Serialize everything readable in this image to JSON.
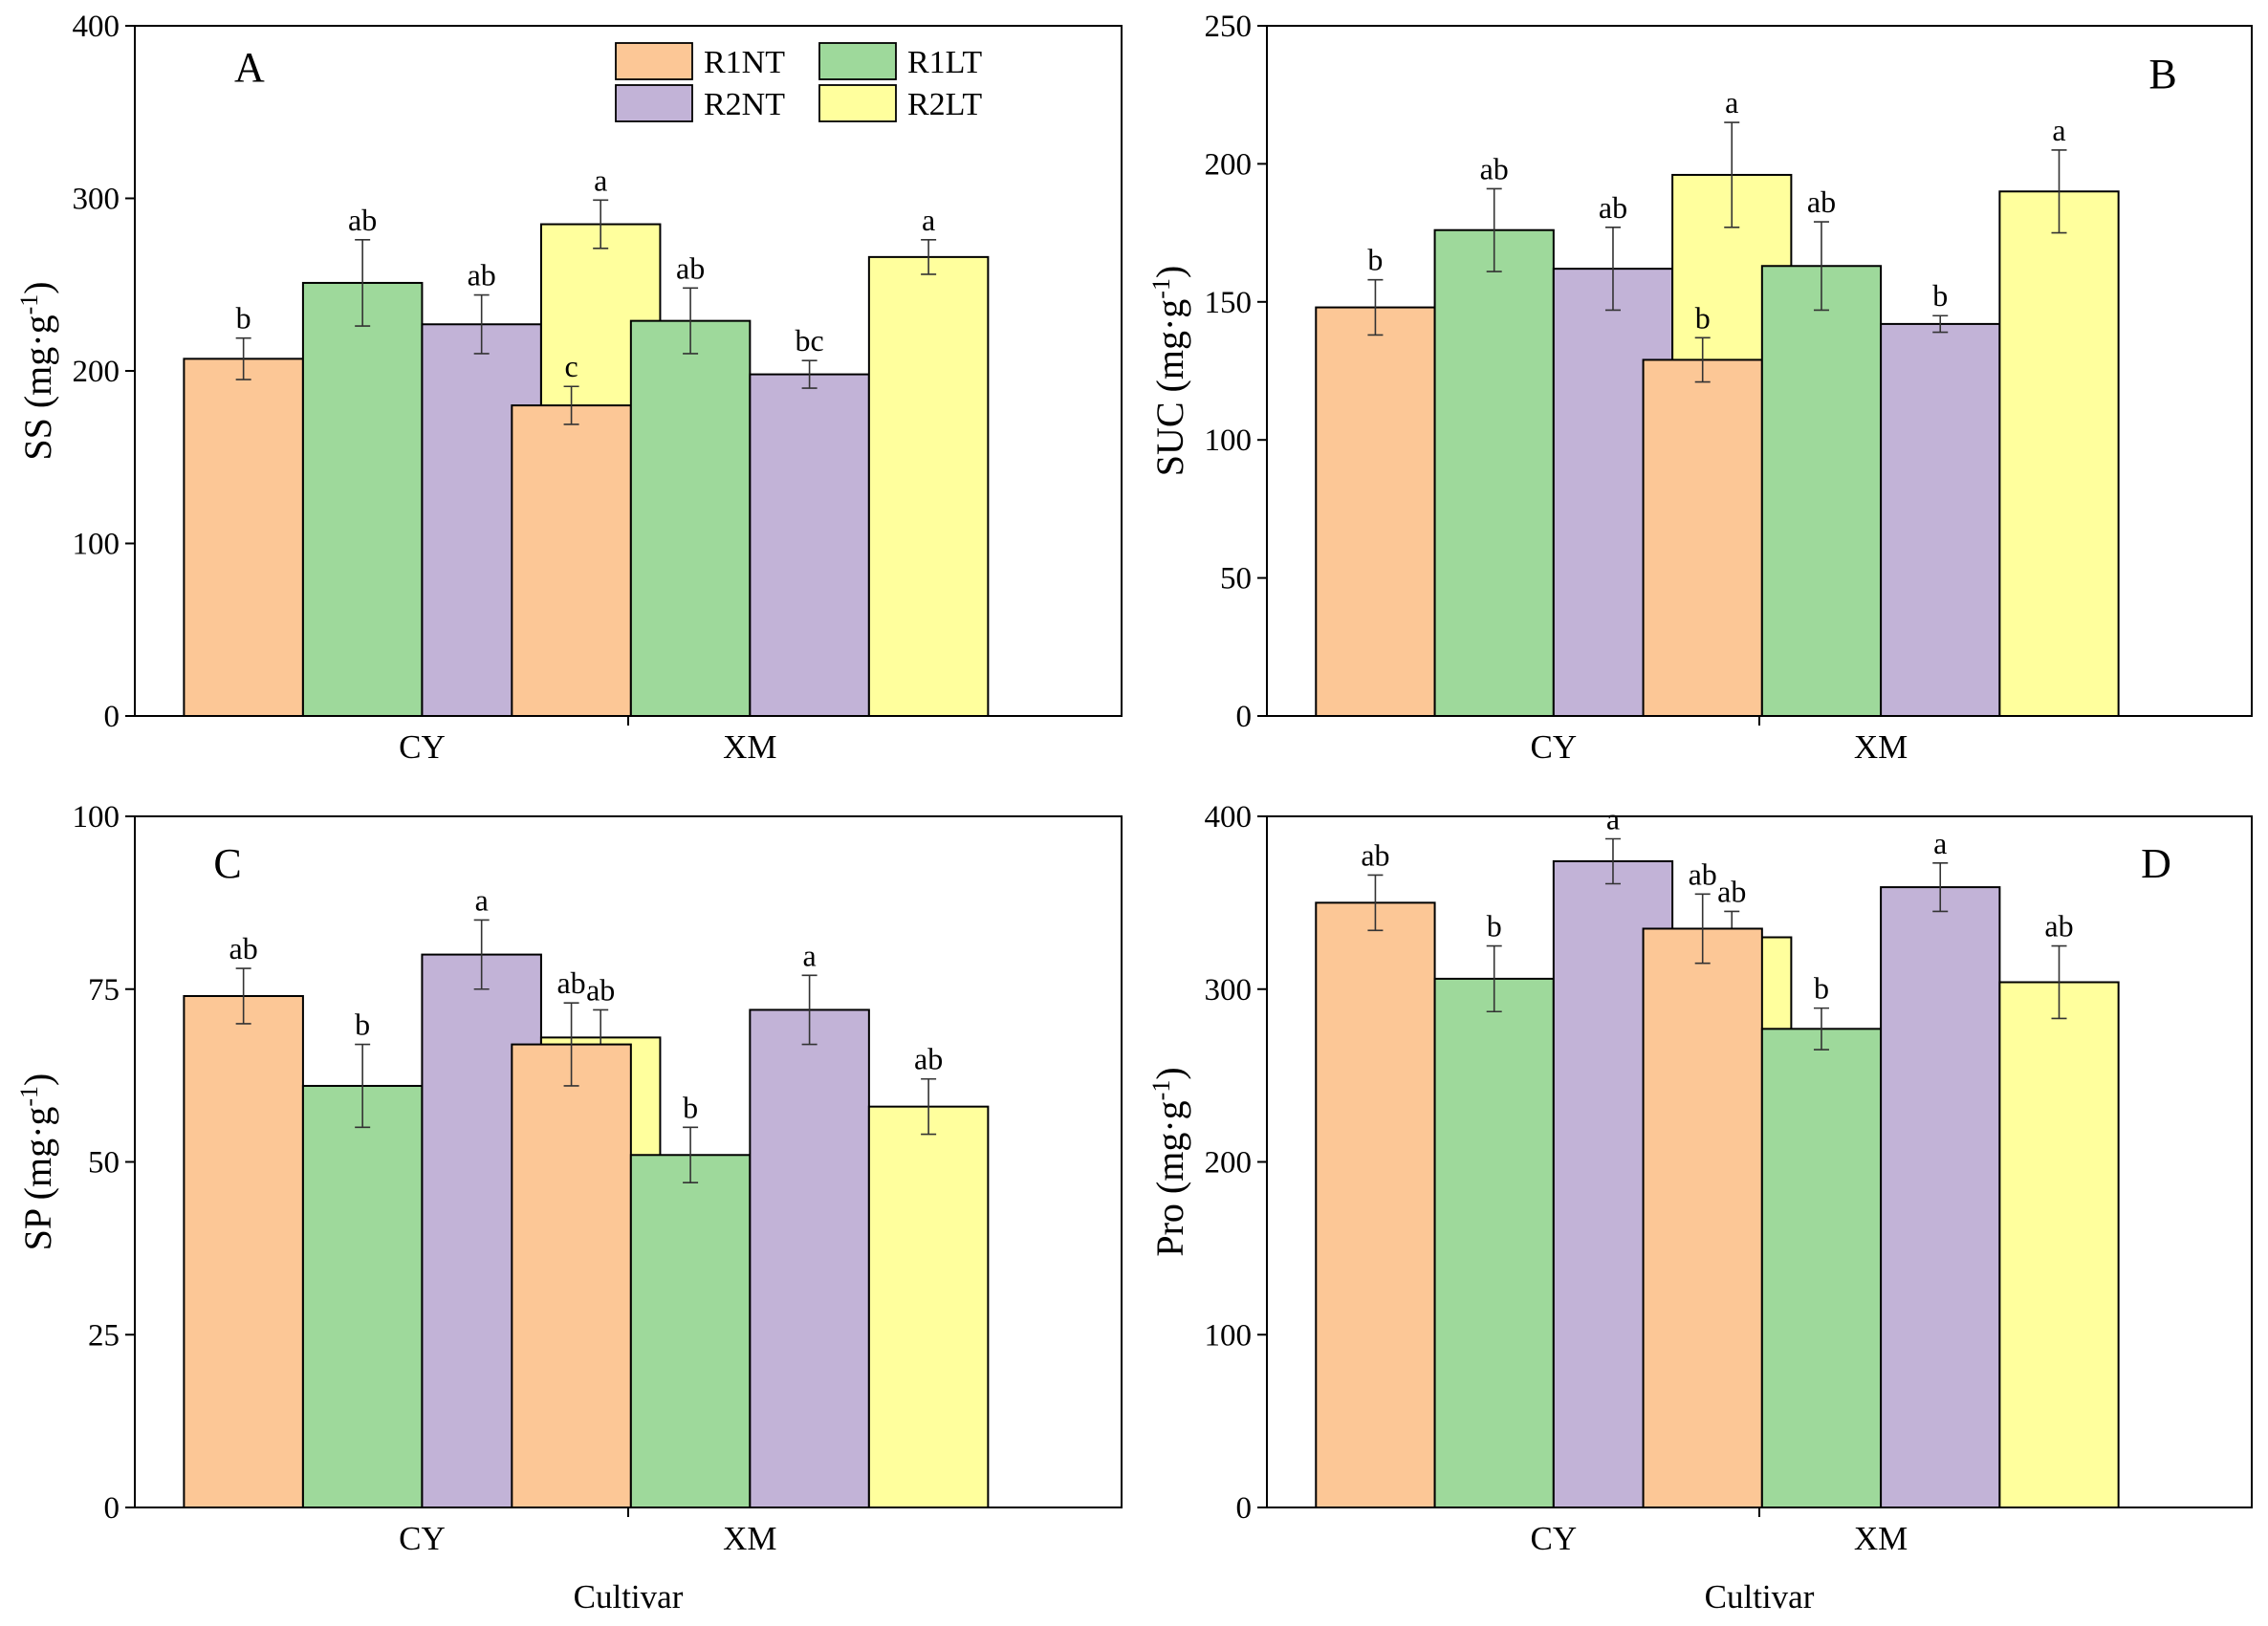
{
  "legend": {
    "items": [
      {
        "name": "R1NT",
        "color": "#FCC796"
      },
      {
        "name": "R1LT",
        "color": "#9ED99B"
      },
      {
        "name": "R2NT",
        "color": "#C2B3D7"
      },
      {
        "name": "R2LT",
        "color": "#FFFF9D"
      }
    ]
  },
  "chart_data": [
    {
      "type": "bar",
      "panel": "A",
      "ylabel": "SS (mg·g-1)",
      "ylabel_base": "SS (mg·g",
      "ylabel_sup": "-1",
      "ylabel_end": ")",
      "xlabel": "",
      "ylim": [
        0,
        400
      ],
      "yticks": [
        0,
        100,
        200,
        300,
        400
      ],
      "categories": [
        "CY",
        "XM"
      ],
      "series": [
        {
          "name": "R1NT",
          "values": [
            207,
            180
          ],
          "errors": [
            12,
            11
          ],
          "labels": [
            "b",
            "c"
          ]
        },
        {
          "name": "R1LT",
          "values": [
            251,
            229
          ],
          "errors": [
            25,
            19
          ],
          "labels": [
            "ab",
            "ab"
          ]
        },
        {
          "name": "R2NT",
          "values": [
            227,
            198
          ],
          "errors": [
            17,
            8
          ],
          "labels": [
            "ab",
            "bc"
          ]
        },
        {
          "name": "R2LT",
          "values": [
            285,
            266
          ],
          "errors": [
            14,
            10
          ],
          "labels": [
            "a",
            "a"
          ]
        }
      ]
    },
    {
      "type": "bar",
      "panel": "B",
      "ylabel": "SUC (mg·g-1)",
      "ylabel_base": "SUC (mg·g",
      "ylabel_sup": "-1",
      "ylabel_end": ")",
      "xlabel": "",
      "ylim": [
        0,
        250
      ],
      "yticks": [
        0,
        50,
        100,
        150,
        200,
        250
      ],
      "categories": [
        "CY",
        "XM"
      ],
      "series": [
        {
          "name": "R1NT",
          "values": [
            148,
            129
          ],
          "errors": [
            10,
            8
          ],
          "labels": [
            "b",
            "b"
          ]
        },
        {
          "name": "R1LT",
          "values": [
            176,
            163
          ],
          "errors": [
            15,
            16
          ],
          "labels": [
            "ab",
            "ab"
          ]
        },
        {
          "name": "R2NT",
          "values": [
            162,
            142
          ],
          "errors": [
            15,
            3
          ],
          "labels": [
            "ab",
            "b"
          ]
        },
        {
          "name": "R2LT",
          "values": [
            196,
            190
          ],
          "errors": [
            19,
            15
          ],
          "labels": [
            "a",
            "a"
          ]
        }
      ]
    },
    {
      "type": "bar",
      "panel": "C",
      "ylabel": "SP (mg·g-1)",
      "ylabel_base": "SP (mg·g",
      "ylabel_sup": "-1",
      "ylabel_end": ")",
      "xlabel": "Cultivar",
      "ylim": [
        0,
        100
      ],
      "yticks": [
        0,
        25,
        50,
        75,
        100
      ],
      "categories": [
        "CY",
        "XM"
      ],
      "series": [
        {
          "name": "R1NT",
          "values": [
            74,
            67
          ],
          "errors": [
            4,
            6
          ],
          "labels": [
            "ab",
            "ab"
          ]
        },
        {
          "name": "R1LT",
          "values": [
            61,
            51
          ],
          "errors": [
            6,
            4
          ],
          "labels": [
            "b",
            "b"
          ]
        },
        {
          "name": "R2NT",
          "values": [
            80,
            72
          ],
          "errors": [
            5,
            5
          ],
          "labels": [
            "a",
            "a"
          ]
        },
        {
          "name": "R2LT",
          "values": [
            68,
            58
          ],
          "errors": [
            4,
            4
          ],
          "labels": [
            "ab",
            "ab"
          ]
        }
      ]
    },
    {
      "type": "bar",
      "panel": "D",
      "ylabel": "Pro (mg·g-1)",
      "ylabel_base": "Pro (mg·g",
      "ylabel_sup": "-1",
      "ylabel_end": ")",
      "xlabel": "Cultivar",
      "ylim": [
        0,
        400
      ],
      "yticks": [
        0,
        100,
        200,
        300,
        400
      ],
      "categories": [
        "CY",
        "XM"
      ],
      "series": [
        {
          "name": "R1NT",
          "values": [
            350,
            335
          ],
          "errors": [
            16,
            20
          ],
          "labels": [
            "ab",
            "ab"
          ]
        },
        {
          "name": "R1LT",
          "values": [
            306,
            277
          ],
          "errors": [
            19,
            12
          ],
          "labels": [
            "b",
            "b"
          ]
        },
        {
          "name": "R2NT",
          "values": [
            374,
            359
          ],
          "errors": [
            13,
            14
          ],
          "labels": [
            "a",
            "a"
          ]
        },
        {
          "name": "R2LT",
          "values": [
            330,
            304
          ],
          "errors": [
            15,
            21
          ],
          "labels": [
            "ab",
            "ab"
          ]
        }
      ]
    }
  ]
}
